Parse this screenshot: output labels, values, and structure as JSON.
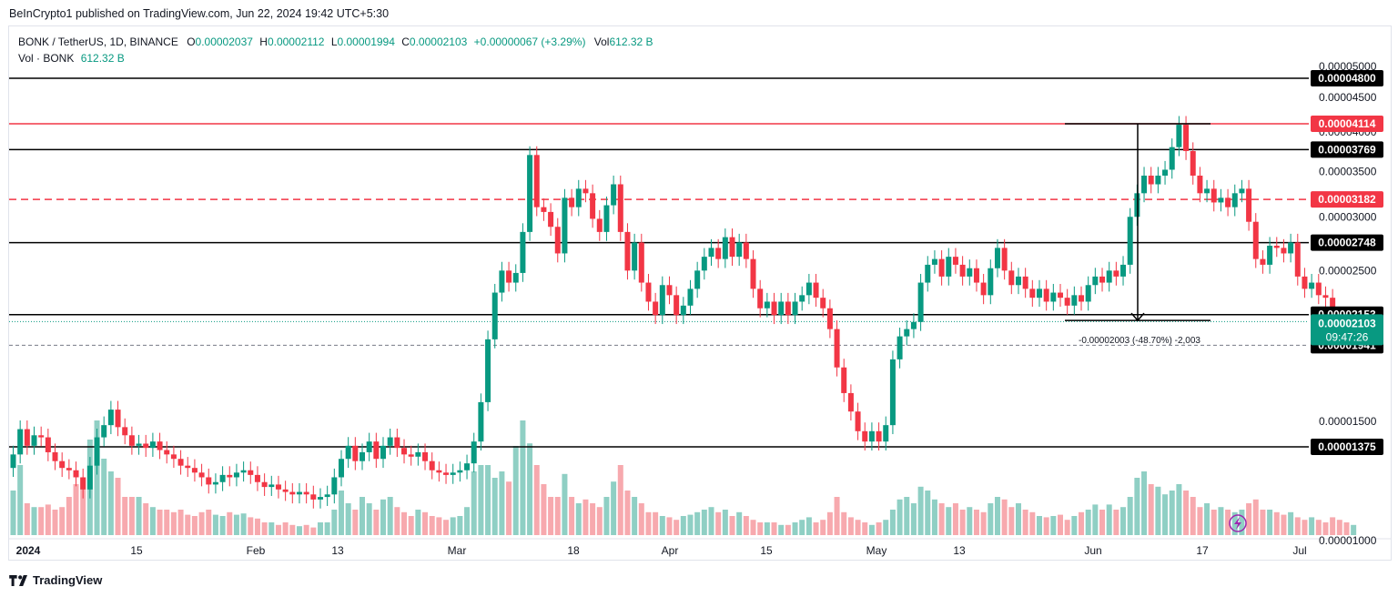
{
  "header": {
    "published": "BeInCrypto1 published on TradingView.com, Jun 22, 2024 19:42 UTC+5:30"
  },
  "legend": {
    "symbol": "BONK / TetherUS, 1D, BINANCE",
    "o_label": "O",
    "o_value": "0.00002037",
    "h_label": "H",
    "h_value": "0.00002112",
    "l_label": "L",
    "l_value": "0.00001994",
    "c_label": "C",
    "c_value": "0.00002103",
    "change": "+0.00000067 (+3.29%)",
    "vol_label": "Vol",
    "vol_value": "612.32 B",
    "vol_row_label": "Vol · BONK",
    "vol_row_value": "612.32 B"
  },
  "footer": {
    "brand": "TradingView"
  },
  "colors": {
    "up": "#089981",
    "down": "#f23645",
    "up_vol": "#8fcfc4",
    "down_vol": "#f7a9ae",
    "red_level": "#f23645"
  },
  "chart_data": {
    "type": "candlestick",
    "x_axis": {
      "ticks": [
        "2024",
        "15",
        "Feb",
        "13",
        "Mar",
        "18",
        "Apr",
        "15",
        "May",
        "13",
        "Jun",
        "17",
        "Jul"
      ]
    },
    "y_axis": {
      "scale": "log",
      "range": [
        8.3e-06,
        5.4e-06
      ],
      "ticks": [
        "0.00005000",
        "0.00004500",
        "0.00004000",
        "0.00003500",
        "0.00003000",
        "0.00002500",
        "0.00001500",
        "0.00001000"
      ]
    },
    "horizontal_levels": [
      {
        "label": "0.00004800",
        "value": 4.8e-05,
        "color": "#000000",
        "style": "solid"
      },
      {
        "label": "0.00004114",
        "value": 4.114e-05,
        "color": "#f23645",
        "style": "solid"
      },
      {
        "label": "0.00003769",
        "value": 3.769e-05,
        "color": "#000000",
        "style": "solid"
      },
      {
        "label": "0.00003182",
        "value": 3.182e-05,
        "color": "#f23645",
        "style": "dashed"
      },
      {
        "label": "0.00002748",
        "value": 2.748e-05,
        "color": "#000000",
        "style": "solid"
      },
      {
        "label": "0.00002153",
        "value": 2.153e-05,
        "color": "#000000",
        "style": "solid"
      },
      {
        "label": "0.00001941",
        "value": 1.941e-05,
        "color": "#000000",
        "style": "dashed-thin"
      },
      {
        "label": "0.00001375",
        "value": 1.375e-05,
        "color": "#000000",
        "style": "solid"
      }
    ],
    "last_price": {
      "label": "0.00002103",
      "countdown": "09:47:26",
      "value": 2.103e-05
    },
    "measurement": {
      "text": "-0.00002003 (-48.70%) -2,003",
      "from_value": 4.114e-05,
      "to_value": 2.111e-05
    },
    "closes": [
      1.34e-05,
      1.46e-05,
      1.38e-05,
      1.43e-05,
      1.42e-05,
      1.35e-05,
      1.31e-05,
      1.28e-05,
      1.27e-05,
      1.24e-05,
      1.19e-05,
      1.29e-05,
      1.42e-05,
      1.48e-05,
      1.56e-05,
      1.47e-05,
      1.43e-05,
      1.38e-05,
      1.39e-05,
      1.37e-05,
      1.4e-05,
      1.36e-05,
      1.34e-05,
      1.32e-05,
      1.29e-05,
      1.28e-05,
      1.26e-05,
      1.24e-05,
      1.21e-05,
      1.22e-05,
      1.25e-05,
      1.24e-05,
      1.26e-05,
      1.27e-05,
      1.25e-05,
      1.22e-05,
      1.2e-05,
      1.21e-05,
      1.19e-05,
      1.18e-05,
      1.17e-05,
      1.18e-05,
      1.17e-05,
      1.15e-05,
      1.16e-05,
      1.17e-05,
      1.24e-05,
      1.32e-05,
      1.38e-05,
      1.31e-05,
      1.35e-05,
      1.4e-05,
      1.32e-05,
      1.38e-05,
      1.42e-05,
      1.37e-05,
      1.34e-05,
      1.33e-05,
      1.35e-05,
      1.31e-05,
      1.27e-05,
      1.26e-05,
      1.25e-05,
      1.26e-05,
      1.27e-05,
      1.3e-05,
      1.4e-05,
      1.6e-05,
      1.98e-05,
      2.32e-05,
      2.5e-05,
      2.4e-05,
      2.48e-05,
      2.85e-05,
      3.7e-05,
      3.1e-05,
      3.05e-05,
      2.9e-05,
      2.65e-05,
      3.2e-05,
      3.1e-05,
      3.3e-05,
      3.25e-05,
      2.98e-05,
      2.85e-05,
      3.12e-05,
      3.35e-05,
      2.85e-05,
      2.5e-05,
      2.75e-05,
      2.4e-05,
      2.25e-05,
      2.15e-05,
      2.38e-05,
      2.3e-05,
      2.15e-05,
      2.22e-05,
      2.35e-05,
      2.5e-05,
      2.62e-05,
      2.7e-05,
      2.6e-05,
      2.8e-05,
      2.62e-05,
      2.75e-05,
      2.6e-05,
      2.35e-05,
      2.2e-05,
      2.25e-05,
      2.15e-05,
      2.25e-05,
      2.15e-05,
      2.25e-05,
      2.3e-05,
      2.4e-05,
      2.28e-05,
      2.2e-05,
      2.05e-05,
      1.8e-05,
      1.65e-05,
      1.55e-05,
      1.45e-05,
      1.4e-05,
      1.45e-05,
      1.4e-05,
      1.48e-05,
      1.85e-05,
      2e-05,
      2.05e-05,
      2.1e-05,
      2.4e-05,
      2.55e-05,
      2.6e-05,
      2.45e-05,
      2.62e-05,
      2.55e-05,
      2.45e-05,
      2.52e-05,
      2.4e-05,
      2.3e-05,
      2.52e-05,
      2.7e-05,
      2.5e-05,
      2.38e-05,
      2.45e-05,
      2.35e-05,
      2.28e-05,
      2.35e-05,
      2.25e-05,
      2.32e-05,
      2.28e-05,
      2.22e-05,
      2.3e-05,
      2.25e-05,
      2.38e-05,
      2.45e-05,
      2.4e-05,
      2.5e-05,
      2.45e-05,
      2.55e-05,
      3e-05,
      3.25e-05,
      3.45e-05,
      3.35e-05,
      3.45e-05,
      3.52e-05,
      3.8e-05,
      4.1e-05,
      3.75e-05,
      3.45e-05,
      3.25e-05,
      3.3e-05,
      3.15e-05,
      3.2e-05,
      3.1e-05,
      3.25e-05,
      3.3e-05,
      2.95e-05,
      2.6e-05,
      2.55e-05,
      2.72e-05,
      2.7e-05,
      2.65e-05,
      2.75e-05,
      2.45e-05,
      2.35e-05,
      2.4e-05,
      2.3e-05,
      2.28e-05,
      2.1e-05,
      2.05e-05,
      2.02e-05,
      2.1e-05
    ],
    "open_first": 1.28e-05,
    "volume_relative": [
      0.35,
      0.55,
      0.25,
      0.22,
      0.22,
      0.24,
      0.2,
      0.22,
      0.3,
      0.4,
      0.45,
      0.75,
      0.9,
      0.6,
      0.5,
      0.45,
      0.3,
      0.3,
      0.3,
      0.25,
      0.22,
      0.2,
      0.2,
      0.18,
      0.2,
      0.16,
      0.15,
      0.18,
      0.2,
      0.16,
      0.15,
      0.18,
      0.16,
      0.17,
      0.14,
      0.13,
      0.1,
      0.1,
      0.08,
      0.1,
      0.08,
      0.07,
      0.08,
      0.06,
      0.1,
      0.1,
      0.2,
      0.35,
      0.25,
      0.2,
      0.3,
      0.25,
      0.2,
      0.28,
      0.3,
      0.22,
      0.18,
      0.15,
      0.2,
      0.18,
      0.15,
      0.14,
      0.12,
      0.14,
      0.15,
      0.22,
      0.5,
      0.55,
      0.55,
      0.45,
      0.5,
      0.42,
      0.7,
      0.9,
      0.72,
      0.55,
      0.4,
      0.3,
      0.3,
      0.48,
      0.3,
      0.25,
      0.28,
      0.25,
      0.22,
      0.3,
      0.42,
      0.55,
      0.35,
      0.3,
      0.25,
      0.18,
      0.18,
      0.15,
      0.14,
      0.12,
      0.15,
      0.16,
      0.18,
      0.2,
      0.22,
      0.18,
      0.2,
      0.15,
      0.18,
      0.15,
      0.12,
      0.1,
      0.1,
      0.1,
      0.08,
      0.08,
      0.1,
      0.12,
      0.14,
      0.1,
      0.12,
      0.18,
      0.3,
      0.18,
      0.14,
      0.12,
      0.1,
      0.08,
      0.1,
      0.12,
      0.2,
      0.28,
      0.3,
      0.25,
      0.38,
      0.35,
      0.28,
      0.25,
      0.22,
      0.25,
      0.2,
      0.22,
      0.2,
      0.18,
      0.25,
      0.3,
      0.28,
      0.22,
      0.25,
      0.2,
      0.18,
      0.15,
      0.14,
      0.15,
      0.16,
      0.12,
      0.15,
      0.18,
      0.2,
      0.24,
      0.2,
      0.24,
      0.2,
      0.22,
      0.3,
      0.45,
      0.5,
      0.4,
      0.38,
      0.32,
      0.35,
      0.4,
      0.35,
      0.3,
      0.22,
      0.25,
      0.2,
      0.22,
      0.2,
      0.18,
      0.2,
      0.25,
      0.28,
      0.2,
      0.2,
      0.18,
      0.16,
      0.18,
      0.14,
      0.12,
      0.14,
      0.12,
      0.1,
      0.14,
      0.12,
      0.1,
      0.08
    ]
  }
}
